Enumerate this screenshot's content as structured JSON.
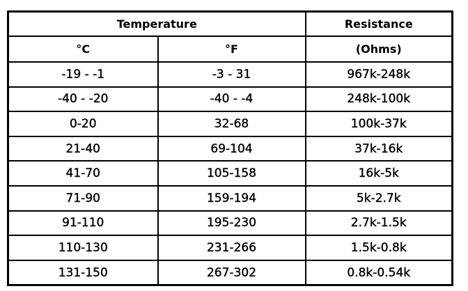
{
  "table": {
    "group_headers": [
      "Temperature",
      "Resistance"
    ],
    "unit_headers": [
      "°C",
      "°F",
      "(Ohms)"
    ],
    "rows": [
      [
        "-19 - -1",
        "-3 - 31",
        "967k-248k"
      ],
      [
        "-40 - -20",
        "-40 - -4",
        "248k-100k"
      ],
      [
        "0-20",
        "32-68",
        "100k-37k"
      ],
      [
        "21-40",
        "69-104",
        "37k-16k"
      ],
      [
        "41-70",
        "105-158",
        "16k-5k"
      ],
      [
        "71-90",
        "159-194",
        "5k-2.7k"
      ],
      [
        "91-110",
        "195-230",
        "2.7k-1.5k"
      ],
      [
        "110-130",
        "231-266",
        "1.5k-0.8k"
      ],
      [
        "131-150",
        "267-302",
        "0.8k-0.54k"
      ]
    ]
  }
}
